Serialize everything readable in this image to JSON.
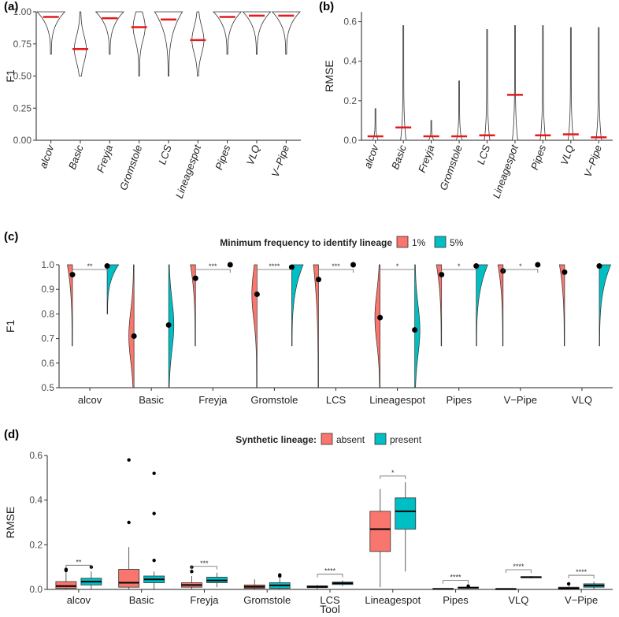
{
  "colors": {
    "one_pct": "#F8766D",
    "five_pct": "#00BFC4",
    "median": "#E41A1C",
    "violin_line": "#333333"
  },
  "chart_data": [
    {
      "id": "a",
      "panel_label": "(a)",
      "type": "violin",
      "ylabel": "F1",
      "ylim": [
        0.0,
        1.0
      ],
      "yticks": [
        "0.00",
        "0.25",
        "0.50",
        "0.75",
        "1.00"
      ],
      "ytick_values": [
        0.0,
        0.25,
        0.5,
        0.75,
        1.0
      ],
      "categories": [
        "alcov",
        "Basic",
        "Freyja",
        "Gromstole",
        "LCS",
        "Lineagespot",
        "Pipes",
        "VLQ",
        "V−Pipe"
      ],
      "medians": [
        0.96,
        0.71,
        0.95,
        0.88,
        0.94,
        0.78,
        0.96,
        0.97,
        0.97
      ],
      "mins": [
        0.67,
        0.5,
        0.67,
        0.5,
        0.5,
        0.5,
        0.67,
        0.67,
        0.67
      ]
    },
    {
      "id": "b",
      "panel_label": "(b)",
      "type": "violin",
      "ylabel": "RMSE",
      "ylim": [
        0.0,
        0.65
      ],
      "yticks": [
        "0.0",
        "0.2",
        "0.4",
        "0.6"
      ],
      "ytick_values": [
        0.0,
        0.2,
        0.4,
        0.6
      ],
      "categories": [
        "alcov",
        "Basic",
        "Freyja",
        "Gromstole",
        "LCS",
        "Lineagespot",
        "Pipes",
        "VLQ",
        "V−Pipe"
      ],
      "medians": [
        0.02,
        0.065,
        0.02,
        0.02,
        0.025,
        0.23,
        0.025,
        0.03,
        0.015
      ],
      "maxs": [
        0.16,
        0.58,
        0.1,
        0.3,
        0.56,
        0.58,
        0.58,
        0.57,
        0.57
      ]
    },
    {
      "id": "c",
      "panel_label": "(c)",
      "type": "split-violin",
      "legend_title": "Minimum frequency to identify lineage",
      "legend_labels": [
        "1%",
        "5%"
      ],
      "ylabel": "F1",
      "ylim": [
        0.5,
        1.0
      ],
      "yticks": [
        "0.5",
        "0.6",
        "0.7",
        "0.8",
        "0.9",
        "1.0"
      ],
      "ytick_values": [
        0.5,
        0.6,
        0.7,
        0.8,
        0.9,
        1.0
      ],
      "categories": [
        "alcov",
        "Basic",
        "Freyja",
        "Gromstole",
        "LCS",
        "Lineagespot",
        "Pipes",
        "V−Pipe",
        "VLQ"
      ],
      "series": [
        {
          "name": "1%",
          "means": [
            0.96,
            0.71,
            0.945,
            0.88,
            0.94,
            0.785,
            0.96,
            0.975,
            0.97
          ],
          "mins": [
            0.67,
            0.5,
            0.67,
            0.5,
            0.5,
            0.5,
            0.67,
            0.67,
            0.67
          ]
        },
        {
          "name": "5%",
          "means": [
            0.995,
            0.755,
            1.0,
            0.99,
            1.0,
            0.735,
            0.995,
            1.0,
            0.995
          ],
          "mins": [
            0.8,
            0.5,
            1.0,
            0.67,
            1.0,
            0.5,
            0.67,
            1.0,
            0.67
          ]
        }
      ],
      "significance": [
        "**",
        "",
        "***",
        "****",
        "***",
        "*",
        "*",
        "*",
        ""
      ]
    },
    {
      "id": "d",
      "panel_label": "(d)",
      "type": "boxplot",
      "legend_title": "Synthetic lineage:",
      "legend_labels": [
        "absent",
        "present"
      ],
      "ylabel": "RMSE",
      "xlabel": "Tool",
      "ylim": [
        0.0,
        0.6
      ],
      "yticks": [
        "0.0",
        "0.2",
        "0.4",
        "0.6"
      ],
      "ytick_values": [
        0.0,
        0.2,
        0.4,
        0.6
      ],
      "categories": [
        "alcov",
        "Basic",
        "Freyja",
        "Gromstole",
        "LCS",
        "Lineagespot",
        "Pipes",
        "VLQ",
        "V−Pipe"
      ],
      "series": [
        {
          "name": "absent",
          "boxes": [
            [
              0.0,
              0.005,
              0.015,
              0.035,
              0.08
            ],
            [
              0.0,
              0.01,
              0.03,
              0.09,
              0.19
            ],
            [
              0.0,
              0.01,
              0.02,
              0.03,
              0.06
            ],
            [
              0.0,
              0.005,
              0.012,
              0.02,
              0.045
            ],
            [
              0.0,
              0.008,
              0.012,
              0.016,
              0.02
            ],
            [
              0.01,
              0.17,
              0.27,
              0.35,
              0.45
            ],
            [
              0.0,
              0.0,
              0.002,
              0.004,
              0.006
            ],
            [
              0.0,
              0.0,
              0.002,
              0.003,
              0.005
            ],
            [
              0.0,
              0.002,
              0.005,
              0.01,
              0.015
            ]
          ],
          "outliers": [
            [
              0.09,
              0.085
            ],
            [
              0.58,
              0.3
            ],
            [
              0.1,
              0.08
            ],
            [],
            [],
            [],
            [],
            [],
            [
              0.025
            ]
          ]
        },
        {
          "name": "present",
          "boxes": [
            [
              0.0,
              0.02,
              0.035,
              0.05,
              0.08
            ],
            [
              0.0,
              0.03,
              0.045,
              0.06,
              0.08
            ],
            [
              0.01,
              0.03,
              0.04,
              0.055,
              0.075
            ],
            [
              0.0,
              0.005,
              0.018,
              0.03,
              0.05
            ],
            [
              0.015,
              0.022,
              0.028,
              0.033,
              0.04
            ],
            [
              0.08,
              0.27,
              0.35,
              0.41,
              0.48
            ],
            [
              0.004,
              0.006,
              0.008,
              0.01,
              0.012
            ],
            [
              0.05,
              0.052,
              0.055,
              0.057,
              0.06
            ],
            [
              0.0,
              0.01,
              0.017,
              0.025,
              0.035
            ]
          ],
          "outliers": [
            [
              0.1
            ],
            [
              0.52,
              0.34,
              0.13
            ],
            [],
            [
              0.06,
              0.065
            ],
            [],
            [],
            [
              0.015
            ],
            [],
            []
          ]
        }
      ],
      "significance": [
        "**",
        "",
        "***",
        "",
        "****",
        "*",
        "****",
        "****",
        "****"
      ]
    }
  ]
}
